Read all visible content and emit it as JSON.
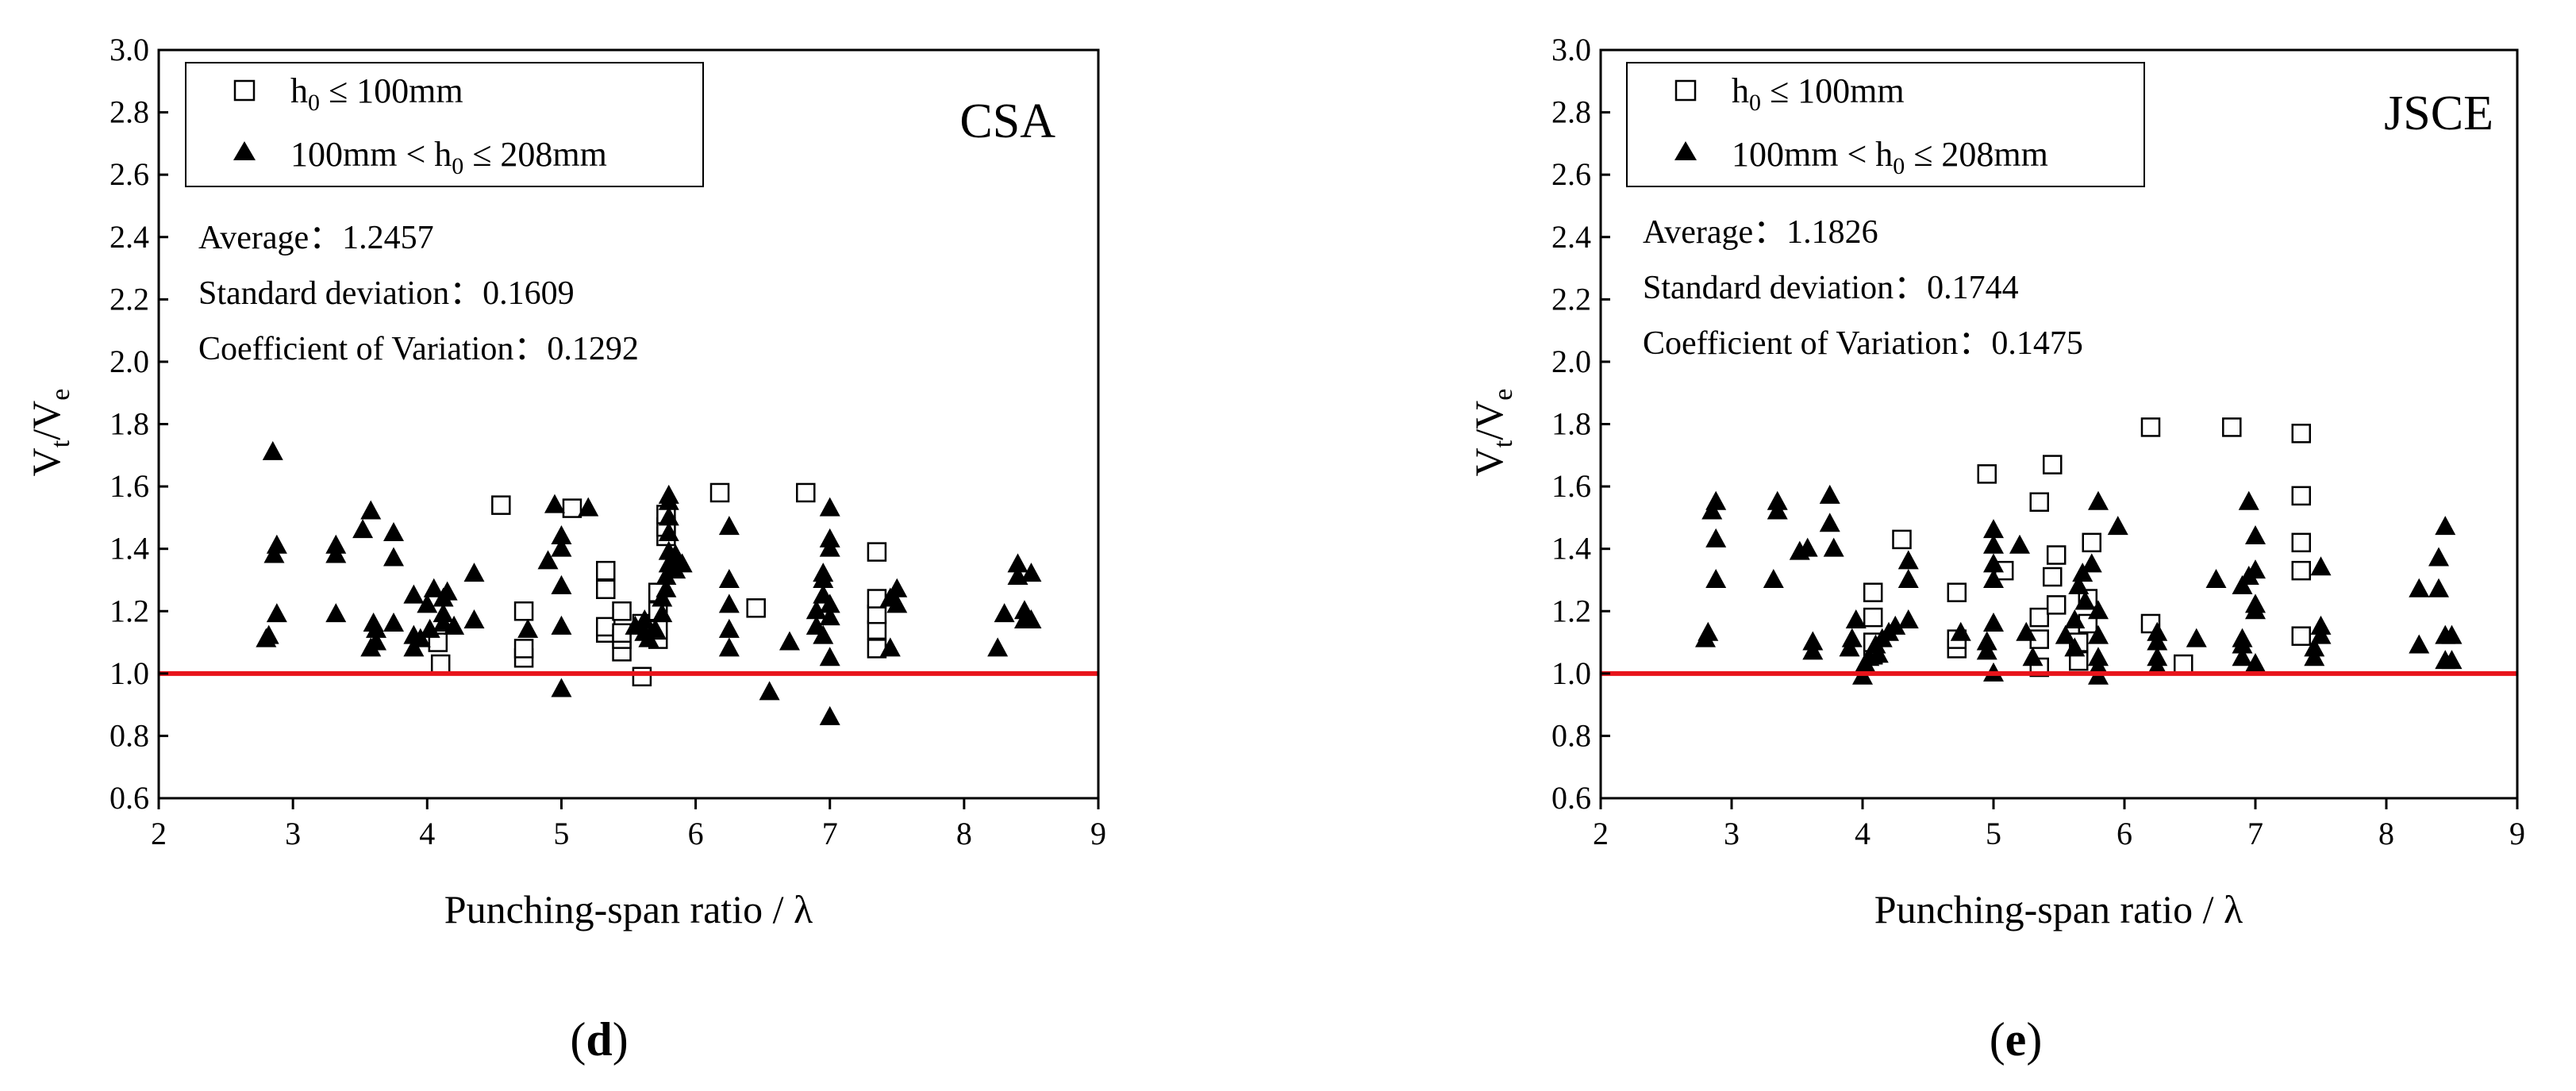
{
  "panels": [
    {
      "caption_text": "d",
      "corner_label": "CSA",
      "xlabel": "Punching-span ratio / λ",
      "ylabel": "V",
      "ylabel_sub1": "t",
      "ylabel_mid": "/V",
      "ylabel_sub2": "e",
      "legend_open_h": "h",
      "legend_open_sub": "0",
      "legend_open_rest": " ≤ 100mm",
      "legend_filled_pre": "100mm < h",
      "legend_filled_sub": "0",
      "legend_filled_rest": " ≤ 208mm",
      "stats": {
        "average_label": "Average：",
        "average_value": "1.2457",
        "std_label": "Standard deviation：",
        "std_value": "0.1609",
        "cov_label": "Coefficient of Variation：",
        "cov_value": "0.1292"
      }
    },
    {
      "caption_text": "e",
      "corner_label": "JSCE",
      "xlabel": "Punching-span ratio / λ",
      "ylabel": "V",
      "ylabel_sub1": "t",
      "ylabel_mid": "/V",
      "ylabel_sub2": "e",
      "legend_open_h": "h",
      "legend_open_sub": "0",
      "legend_open_rest": " ≤ 100mm",
      "legend_filled_pre": "100mm < h",
      "legend_filled_sub": "0",
      "legend_filled_rest": " ≤ 208mm",
      "stats": {
        "average_label": "Average：",
        "average_value": "1.1826",
        "std_label": "Standard deviation：",
        "std_value": "0.1744",
        "cov_label": "Coefficient of Variation：",
        "cov_value": "0.1475"
      }
    }
  ],
  "colors": {
    "reference_line": "#e8141b",
    "marker": "#000000",
    "axis": "#000000"
  },
  "chart_data": [
    {
      "type": "scatter",
      "title": "CSA",
      "xlabel": "Punching-span ratio / λ",
      "ylabel": "Vt/Ve",
      "xlim": [
        2,
        9
      ],
      "ylim": [
        0.6,
        3.0
      ],
      "xticks": [
        "2",
        "3",
        "4",
        "5",
        "6",
        "7",
        "8",
        "9"
      ],
      "yticks": [
        "0.6",
        "0.8",
        "1.0",
        "1.2",
        "1.4",
        "1.6",
        "1.8",
        "2.0",
        "2.2",
        "2.4",
        "2.6",
        "2.8",
        "3.0"
      ],
      "reference_line_y": 1.0,
      "legend_position": "top-left",
      "series": [
        {
          "name": "h0 ≤ 100mm",
          "marker": "open-square",
          "points": [
            [
              4.1,
              1.03
            ],
            [
              4.08,
              1.1
            ],
            [
              4.55,
              1.54
            ],
            [
              4.72,
              1.05
            ],
            [
              4.72,
              1.08
            ],
            [
              4.72,
              1.2
            ],
            [
              5.08,
              1.53
            ],
            [
              5.33,
              1.13
            ],
            [
              5.33,
              1.15
            ],
            [
              5.33,
              1.27
            ],
            [
              5.33,
              1.33
            ],
            [
              5.45,
              1.07
            ],
            [
              5.45,
              1.11
            ],
            [
              5.45,
              1.13
            ],
            [
              5.45,
              1.2
            ],
            [
              5.6,
              0.99
            ],
            [
              5.6,
              1.16
            ],
            [
              5.72,
              1.11
            ],
            [
              5.72,
              1.14
            ],
            [
              5.72,
              1.2
            ],
            [
              5.72,
              1.26
            ],
            [
              5.78,
              1.44
            ],
            [
              5.78,
              1.47
            ],
            [
              5.78,
              1.51
            ],
            [
              6.18,
              1.58
            ],
            [
              6.45,
              1.21
            ],
            [
              6.82,
              1.58
            ],
            [
              7.35,
              1.08
            ],
            [
              7.35,
              1.14
            ],
            [
              7.35,
              1.19
            ],
            [
              7.35,
              1.24
            ],
            [
              7.35,
              1.39
            ]
          ]
        },
        {
          "name": "100mm < h0 ≤ 208mm",
          "marker": "filled-triangle",
          "points": [
            [
              2.8,
              1.11
            ],
            [
              2.82,
              1.12
            ],
            [
              2.85,
              1.71
            ],
            [
              2.86,
              1.38
            ],
            [
              2.88,
              1.19
            ],
            [
              2.88,
              1.41
            ],
            [
              3.32,
              1.19
            ],
            [
              3.32,
              1.38
            ],
            [
              3.32,
              1.41
            ],
            [
              3.52,
              1.46
            ],
            [
              3.58,
              1.52
            ],
            [
              3.58,
              1.08
            ],
            [
              3.6,
              1.16
            ],
            [
              3.62,
              1.1
            ],
            [
              3.62,
              1.14
            ],
            [
              3.75,
              1.16
            ],
            [
              3.75,
              1.37
            ],
            [
              3.75,
              1.45
            ],
            [
              3.9,
              1.08
            ],
            [
              3.9,
              1.12
            ],
            [
              3.9,
              1.25
            ],
            [
              3.95,
              1.11
            ],
            [
              4.0,
              1.22
            ],
            [
              4.02,
              1.14
            ],
            [
              4.05,
              1.27
            ],
            [
              4.12,
              1.24
            ],
            [
              4.12,
              1.19
            ],
            [
              4.12,
              1.16
            ],
            [
              4.15,
              1.26
            ],
            [
              4.2,
              1.15
            ],
            [
              4.35,
              1.17
            ],
            [
              4.35,
              1.32
            ],
            [
              4.75,
              1.14
            ],
            [
              4.9,
              1.36
            ],
            [
              4.95,
              1.54
            ],
            [
              5.0,
              1.44
            ],
            [
              5.0,
              1.4
            ],
            [
              5.0,
              1.28
            ],
            [
              5.0,
              1.15
            ],
            [
              5.0,
              0.95
            ],
            [
              5.2,
              1.53
            ],
            [
              5.55,
              1.15
            ],
            [
              5.62,
              1.17
            ],
            [
              5.62,
              1.13
            ],
            [
              5.65,
              1.11
            ],
            [
              5.7,
              1.14
            ],
            [
              5.75,
              1.19
            ],
            [
              5.75,
              1.24
            ],
            [
              5.78,
              1.27
            ],
            [
              5.78,
              1.31
            ],
            [
              5.8,
              1.35
            ],
            [
              5.8,
              1.39
            ],
            [
              5.8,
              1.45
            ],
            [
              5.8,
              1.5
            ],
            [
              5.8,
              1.55
            ],
            [
              5.8,
              1.57
            ],
            [
              5.85,
              1.33
            ],
            [
              5.85,
              1.38
            ],
            [
              5.9,
              1.35
            ],
            [
              6.25,
              1.08
            ],
            [
              6.25,
              1.14
            ],
            [
              6.25,
              1.22
            ],
            [
              6.25,
              1.3
            ],
            [
              6.25,
              1.47
            ],
            [
              6.55,
              0.94
            ],
            [
              6.7,
              1.1
            ],
            [
              6.9,
              1.15
            ],
            [
              6.9,
              1.2
            ],
            [
              6.95,
              1.25
            ],
            [
              6.95,
              1.3
            ],
            [
              6.95,
              1.32
            ],
            [
              6.95,
              1.12
            ],
            [
              7.0,
              1.18
            ],
            [
              7.0,
              1.22
            ],
            [
              7.0,
              1.4
            ],
            [
              7.0,
              1.43
            ],
            [
              7.0,
              1.53
            ],
            [
              7.0,
              1.05
            ],
            [
              7.0,
              0.86
            ],
            [
              7.45,
              1.08
            ],
            [
              7.45,
              1.24
            ],
            [
              7.5,
              1.22
            ],
            [
              7.5,
              1.27
            ],
            [
              8.25,
              1.08
            ],
            [
              8.3,
              1.19
            ],
            [
              8.4,
              1.35
            ],
            [
              8.4,
              1.31
            ],
            [
              8.45,
              1.17
            ],
            [
              8.45,
              1.2
            ],
            [
              8.5,
              1.32
            ],
            [
              8.5,
              1.17
            ]
          ]
        }
      ]
    },
    {
      "type": "scatter",
      "title": "JSCE",
      "xlabel": "Punching-span ratio / λ",
      "ylabel": "Vt/Ve",
      "xlim": [
        2,
        9
      ],
      "ylim": [
        0.6,
        3.0
      ],
      "xticks": [
        "2",
        "3",
        "4",
        "5",
        "6",
        "7",
        "8",
        "9"
      ],
      "yticks": [
        "0.6",
        "0.8",
        "1.0",
        "1.2",
        "1.4",
        "1.6",
        "1.8",
        "2.0",
        "2.2",
        "2.4",
        "2.6",
        "2.8",
        "3.0"
      ],
      "reference_line_y": 1.0,
      "legend_position": "top-left",
      "series": [
        {
          "name": "h0 ≤ 100mm",
          "marker": "open-square",
          "points": [
            [
              4.08,
              1.06
            ],
            [
              4.08,
              1.1
            ],
            [
              4.08,
              1.18
            ],
            [
              4.08,
              1.26
            ],
            [
              4.3,
              1.43
            ],
            [
              4.72,
              1.08
            ],
            [
              4.72,
              1.11
            ],
            [
              4.72,
              1.26
            ],
            [
              4.95,
              1.64
            ],
            [
              5.08,
              1.33
            ],
            [
              5.35,
              1.02
            ],
            [
              5.35,
              1.11
            ],
            [
              5.35,
              1.18
            ],
            [
              5.35,
              1.55
            ],
            [
              5.45,
              1.31
            ],
            [
              5.45,
              1.67
            ],
            [
              5.48,
              1.22
            ],
            [
              5.48,
              1.38
            ],
            [
              5.65,
              1.04
            ],
            [
              5.65,
              1.1
            ],
            [
              5.72,
              1.16
            ],
            [
              5.72,
              1.24
            ],
            [
              5.75,
              1.42
            ],
            [
              6.45,
              1.03
            ],
            [
              6.2,
              1.16
            ],
            [
              6.2,
              1.79
            ],
            [
              6.82,
              1.79
            ],
            [
              7.35,
              1.12
            ],
            [
              7.35,
              1.33
            ],
            [
              7.35,
              1.42
            ],
            [
              7.35,
              1.57
            ],
            [
              7.35,
              1.77
            ]
          ]
        },
        {
          "name": "100mm < h0 ≤ 208mm",
          "marker": "filled-triangle",
          "points": [
            [
              2.8,
              1.11
            ],
            [
              2.82,
              1.13
            ],
            [
              2.85,
              1.52
            ],
            [
              2.88,
              1.55
            ],
            [
              2.88,
              1.43
            ],
            [
              2.88,
              1.3
            ],
            [
              3.32,
              1.3
            ],
            [
              3.35,
              1.52
            ],
            [
              3.35,
              1.55
            ],
            [
              3.52,
              1.39
            ],
            [
              3.58,
              1.4
            ],
            [
              3.62,
              1.07
            ],
            [
              3.62,
              1.1
            ],
            [
              3.75,
              1.48
            ],
            [
              3.75,
              1.57
            ],
            [
              3.78,
              1.4
            ],
            [
              3.9,
              1.08
            ],
            [
              3.92,
              1.11
            ],
            [
              3.95,
              1.17
            ],
            [
              4.0,
              0.99
            ],
            [
              4.02,
              1.03
            ],
            [
              4.05,
              1.05
            ],
            [
              4.1,
              1.09
            ],
            [
              4.12,
              1.06
            ],
            [
              4.15,
              1.11
            ],
            [
              4.2,
              1.13
            ],
            [
              4.25,
              1.15
            ],
            [
              4.35,
              1.3
            ],
            [
              4.35,
              1.36
            ],
            [
              4.35,
              1.17
            ],
            [
              4.75,
              1.13
            ],
            [
              4.95,
              1.07
            ],
            [
              4.95,
              1.1
            ],
            [
              5.0,
              1.0
            ],
            [
              5.0,
              1.16
            ],
            [
              5.0,
              1.3
            ],
            [
              5.0,
              1.35
            ],
            [
              5.0,
              1.41
            ],
            [
              5.0,
              1.46
            ],
            [
              5.2,
              1.41
            ],
            [
              5.25,
              1.13
            ],
            [
              5.3,
              1.05
            ],
            [
              5.55,
              1.12
            ],
            [
              5.62,
              1.08
            ],
            [
              5.62,
              1.17
            ],
            [
              5.65,
              1.28
            ],
            [
              5.68,
              1.32
            ],
            [
              5.7,
              1.23
            ],
            [
              5.75,
              1.35
            ],
            [
              5.8,
              0.99
            ],
            [
              5.8,
              1.02
            ],
            [
              5.8,
              1.05
            ],
            [
              5.8,
              1.12
            ],
            [
              5.8,
              1.2
            ],
            [
              5.8,
              1.55
            ],
            [
              5.95,
              1.47
            ],
            [
              6.25,
              1.02
            ],
            [
              6.25,
              1.05
            ],
            [
              6.25,
              1.1
            ],
            [
              6.25,
              1.13
            ],
            [
              6.55,
              1.11
            ],
            [
              6.7,
              1.3
            ],
            [
              6.9,
              1.05
            ],
            [
              6.9,
              1.09
            ],
            [
              6.9,
              1.11
            ],
            [
              6.9,
              1.28
            ],
            [
              6.95,
              1.31
            ],
            [
              6.95,
              1.55
            ],
            [
              7.0,
              1.03
            ],
            [
              7.0,
              1.2
            ],
            [
              7.0,
              1.33
            ],
            [
              7.0,
              1.44
            ],
            [
              7.0,
              1.22
            ],
            [
              7.45,
              1.05
            ],
            [
              7.45,
              1.08
            ],
            [
              7.5,
              1.12
            ],
            [
              7.5,
              1.15
            ],
            [
              7.5,
              1.34
            ],
            [
              8.25,
              1.09
            ],
            [
              8.25,
              1.27
            ],
            [
              8.4,
              1.27
            ],
            [
              8.4,
              1.37
            ],
            [
              8.45,
              1.47
            ],
            [
              8.45,
              1.12
            ],
            [
              8.45,
              1.04
            ],
            [
              8.5,
              1.12
            ],
            [
              8.5,
              1.04
            ]
          ]
        }
      ]
    }
  ]
}
